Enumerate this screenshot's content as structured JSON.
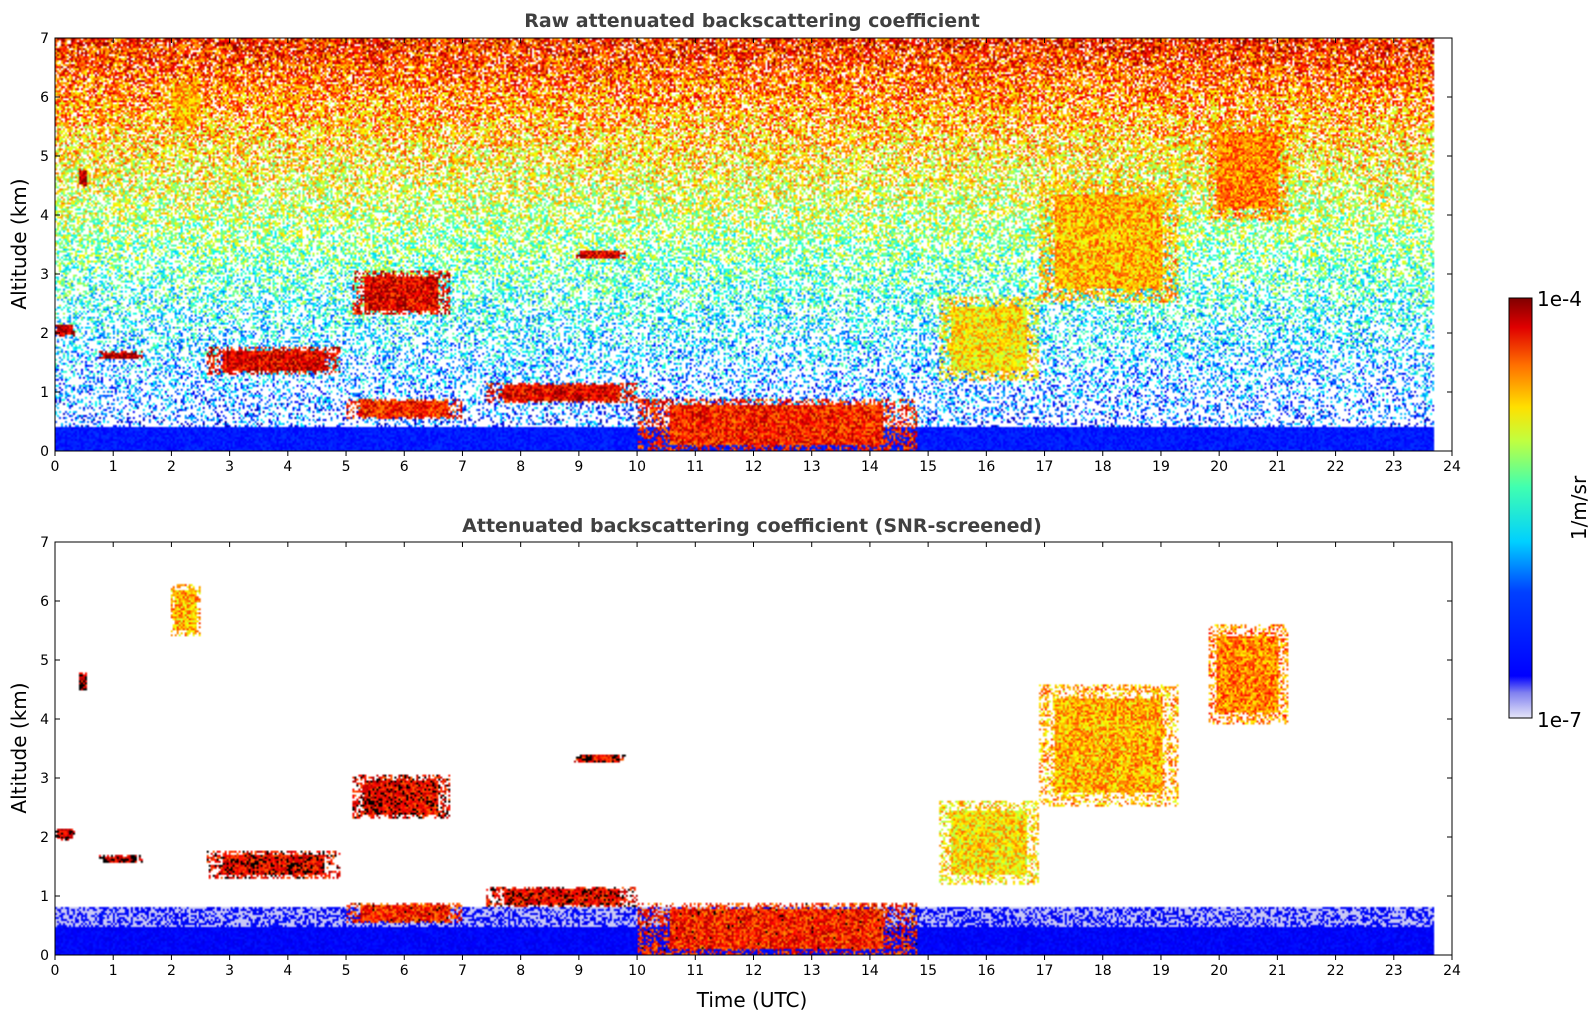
{
  "chart_data": [
    {
      "type": "heatmap",
      "title": "Raw attenuated backscattering coefficient",
      "xlabel": "",
      "ylabel": "Altitude (km)",
      "xlim": [
        0,
        24
      ],
      "ylim": [
        0,
        7
      ],
      "xticks": [
        "0",
        "1",
        "2",
        "3",
        "4",
        "5",
        "6",
        "7",
        "8",
        "9",
        "10",
        "11",
        "12",
        "13",
        "14",
        "15",
        "16",
        "17",
        "18",
        "19",
        "20",
        "21",
        "22",
        "23",
        "24"
      ],
      "yticks": [
        "0",
        "1",
        "2",
        "3",
        "4",
        "5",
        "6",
        "7"
      ],
      "data_end_time": 23.7,
      "cloud_layers": [
        {
          "t_start": 0.0,
          "t_end": 0.35,
          "alt_bottom": 1.95,
          "alt_top": 2.15,
          "level": 0.95
        },
        {
          "t_start": 0.75,
          "t_end": 1.5,
          "alt_bottom": 1.55,
          "alt_top": 1.7,
          "level": 0.95
        },
        {
          "t_start": 2.6,
          "t_end": 4.9,
          "alt_bottom": 1.3,
          "alt_top": 1.75,
          "level": 0.9
        },
        {
          "t_start": 5.0,
          "t_end": 7.0,
          "alt_bottom": 0.55,
          "alt_top": 0.9,
          "level": 0.85
        },
        {
          "t_start": 5.1,
          "t_end": 6.8,
          "alt_bottom": 2.3,
          "alt_top": 3.05,
          "level": 0.9
        },
        {
          "t_start": 7.4,
          "t_end": 10.0,
          "alt_bottom": 0.8,
          "alt_top": 1.15,
          "level": 0.9
        },
        {
          "t_start": 8.9,
          "t_end": 9.8,
          "alt_bottom": 3.25,
          "alt_top": 3.4,
          "level": 0.9
        },
        {
          "t_start": 10.0,
          "t_end": 14.8,
          "alt_bottom": 0.0,
          "alt_top": 0.9,
          "level": 0.85
        },
        {
          "t_start": 15.2,
          "t_end": 16.9,
          "alt_bottom": 1.2,
          "alt_top": 2.6,
          "level": 0.65
        },
        {
          "t_start": 16.9,
          "t_end": 19.3,
          "alt_bottom": 2.5,
          "alt_top": 4.6,
          "level": 0.7
        },
        {
          "t_start": 19.8,
          "t_end": 21.2,
          "alt_bottom": 3.9,
          "alt_top": 5.6,
          "level": 0.75
        },
        {
          "t_start": 2.0,
          "t_end": 2.5,
          "alt_bottom": 5.4,
          "alt_top": 6.3,
          "level": 0.7
        },
        {
          "t_start": 0.4,
          "t_end": 0.55,
          "alt_bottom": 4.5,
          "alt_top": 4.8,
          "level": 0.95
        }
      ],
      "boundary_layer_top_km": 0.8
    },
    {
      "type": "heatmap",
      "title": "Attenuated backscattering coefficient (SNR-screened)",
      "xlabel": "Time (UTC)",
      "ylabel": "Altitude (km)",
      "xlim": [
        0,
        24
      ],
      "ylim": [
        0,
        7
      ],
      "xticks": [
        "0",
        "1",
        "2",
        "3",
        "4",
        "5",
        "6",
        "7",
        "8",
        "9",
        "10",
        "11",
        "12",
        "13",
        "14",
        "15",
        "16",
        "17",
        "18",
        "19",
        "20",
        "21",
        "22",
        "23",
        "24"
      ],
      "yticks": [
        "0",
        "1",
        "2",
        "3",
        "4",
        "5",
        "6",
        "7"
      ],
      "data_end_time": 23.7,
      "screened_background": "white",
      "saturated_color": "#000000"
    }
  ],
  "colorbar": {
    "label": "1/m/sr",
    "max_label": "1e-4",
    "min_label": "1e-7",
    "scale": "log",
    "range": [
      1e-07,
      0.0001
    ],
    "colormap": "jet"
  }
}
